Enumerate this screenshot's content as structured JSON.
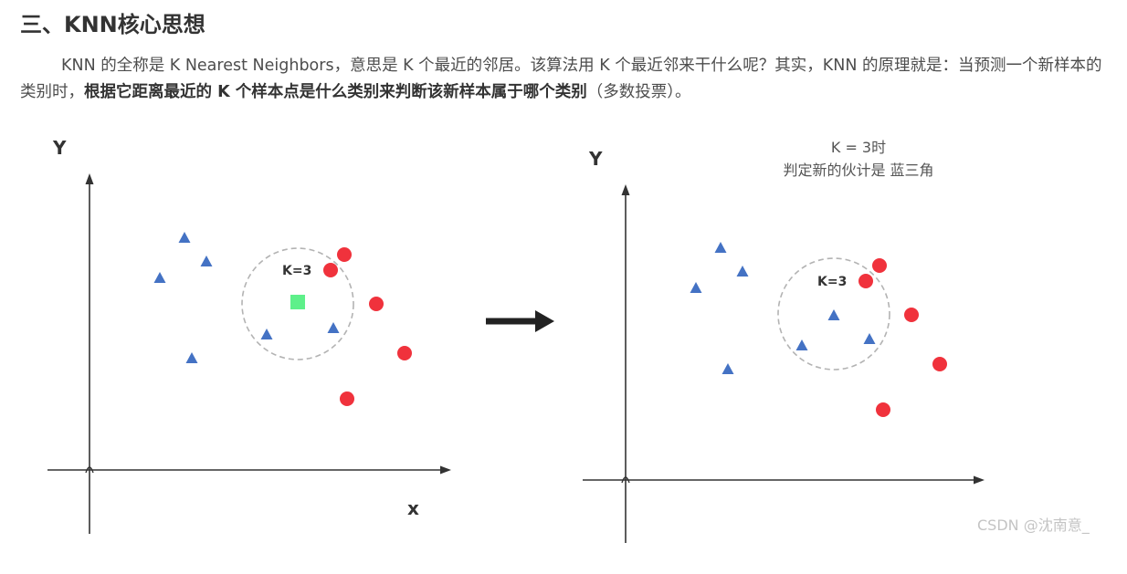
{
  "section": {
    "title": "三、KNN核心思想"
  },
  "intro": {
    "text_plain": "KNN 的全称是 K Nearest Neighbors，意思是 K 个最近的邻居。该算法用 K 个最近邻来干什么呢？其实，KNN 的原理就是：当预测一个新样本的类别时，",
    "text_bold": "根据它距离最近的 K 个样本点是什么类别来判断该新样本属于哪个类别",
    "text_tail": "（多数投票）。"
  },
  "figure": {
    "left_panel": {
      "y_axis_label": "Y",
      "x_axis_label": "x",
      "circle_label": "K=3"
    },
    "right_panel": {
      "y_axis_label": "Y",
      "circle_label": "K=3",
      "caption_line1": "K = 3时",
      "caption_line2": "判定新的伙计是 蓝三角"
    },
    "colors": {
      "triangle": "#4472c4",
      "circle": "#f0323c",
      "new_sample": "#5ef08a",
      "axis": "#333333",
      "neighborhood": "#b3b3b3",
      "arrow": "#222222"
    }
  },
  "watermark": {
    "text": "CSDN @沈南意_"
  }
}
